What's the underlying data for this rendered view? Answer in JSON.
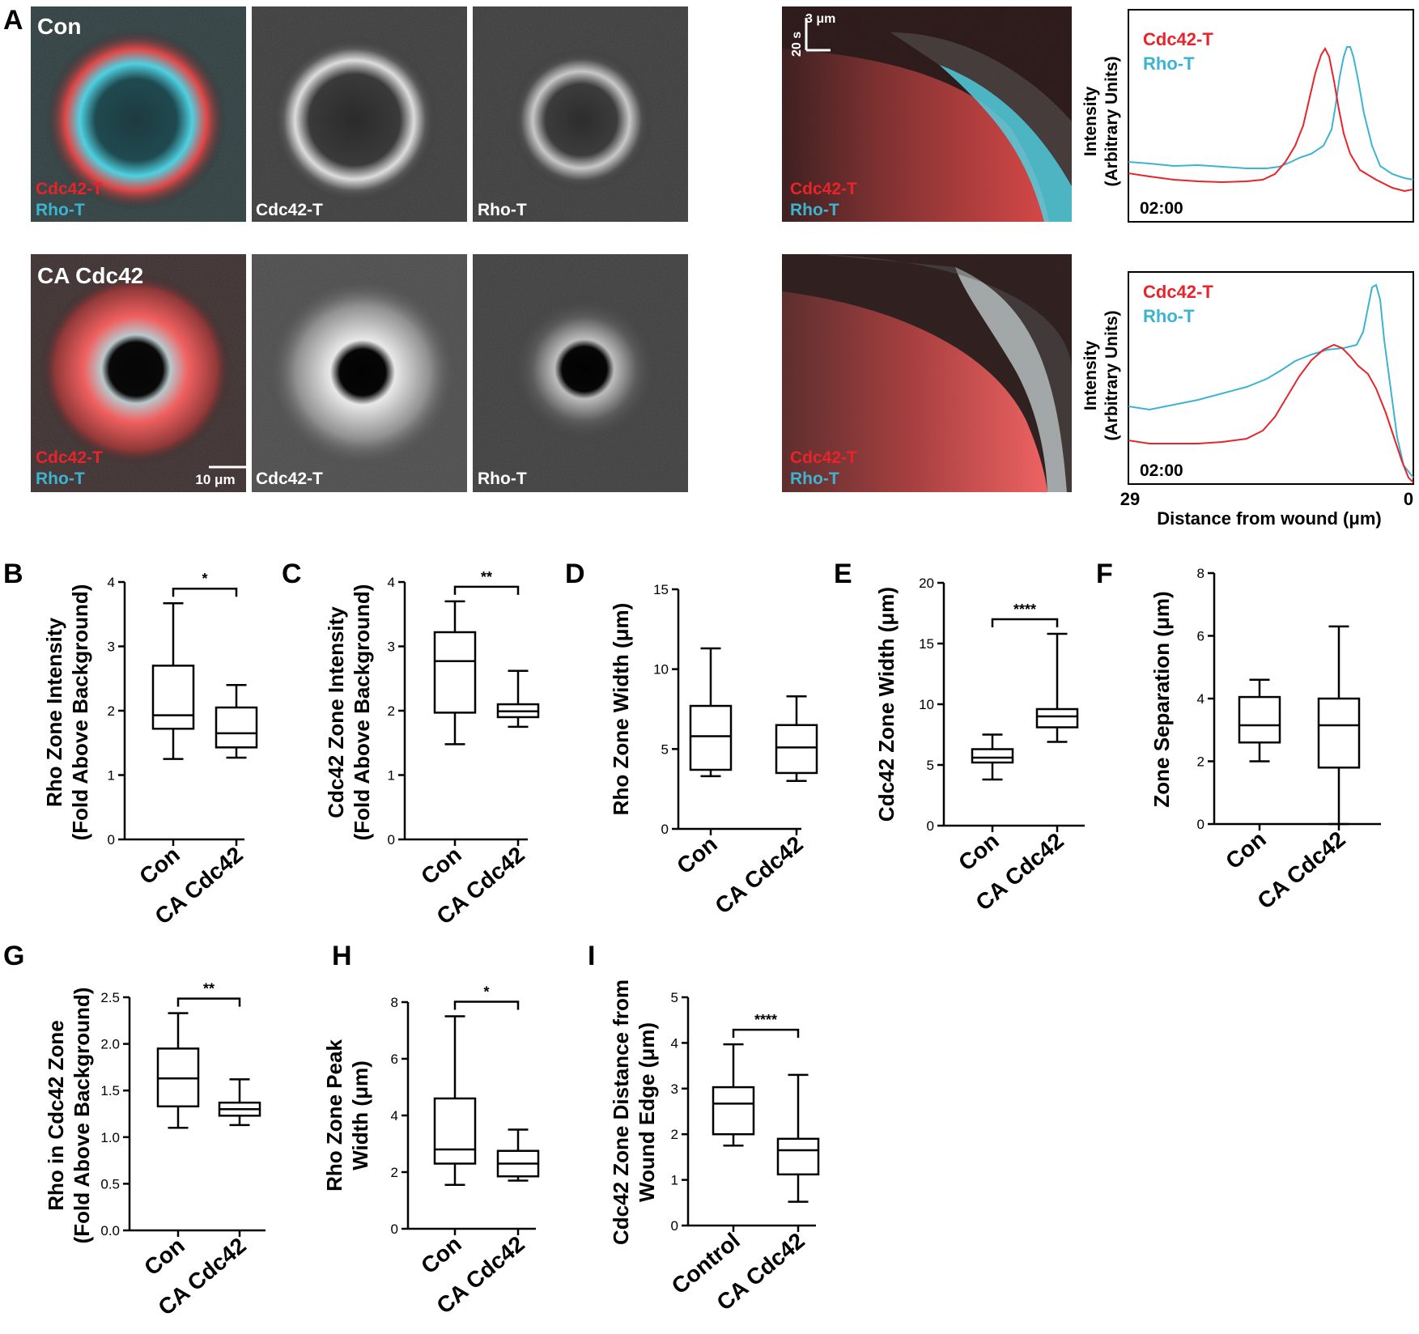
{
  "figure": {
    "panel_letters": [
      "A",
      "B",
      "C",
      "D",
      "E",
      "F",
      "G",
      "H",
      "I"
    ],
    "colors": {
      "red": "#e8242a",
      "cyan": "#3cb4d0",
      "black": "#000000"
    }
  },
  "panelA": {
    "row_labels": [
      "Con",
      "CA Cdc42"
    ],
    "merge_label_red": "Cdc42-T",
    "merge_label_cyan": "Rho-T",
    "gray_label_1": "Cdc42-T",
    "gray_label_2": "Rho-T",
    "scalebar": "10 μm",
    "kymo_scale_x": "3 μm",
    "kymo_scale_y": "20 s",
    "profile": {
      "ylabel_1": "Intensity",
      "ylabel_2": "(Arbitrary Units)",
      "legend_red": "Cdc42-T",
      "legend_cyan": "Rho-T",
      "time": "02:00",
      "x_left": "29",
      "x_right": "0",
      "xlabel": "Distance from wound (μm)"
    }
  },
  "chart_data": [
    {
      "panel": "B",
      "type": "box",
      "ylabel": [
        "Rho Zone Intensity",
        "(Fold Above Background)"
      ],
      "categories": [
        "Con",
        "CA Cdc42"
      ],
      "ylim": [
        0,
        4
      ],
      "yticks": [
        "0",
        "1",
        "2",
        "3",
        "4"
      ],
      "boxes": [
        {
          "min": 1.25,
          "q1": 1.72,
          "median": 1.93,
          "q3": 2.7,
          "max": 3.67
        },
        {
          "min": 1.27,
          "q1": 1.43,
          "median": 1.65,
          "q3": 2.05,
          "max": 2.4
        }
      ],
      "significance": "*"
    },
    {
      "panel": "C",
      "type": "box",
      "ylabel": [
        "Cdc42 Zone Intensity",
        "(Fold Above Background)"
      ],
      "categories": [
        "Con",
        "CA Cdc42"
      ],
      "ylim": [
        0,
        4
      ],
      "yticks": [
        "0",
        "1",
        "2",
        "3",
        "4"
      ],
      "boxes": [
        {
          "min": 1.48,
          "q1": 1.97,
          "median": 2.77,
          "q3": 3.22,
          "max": 3.7
        },
        {
          "min": 1.75,
          "q1": 1.9,
          "median": 1.99,
          "q3": 2.1,
          "max": 2.62
        }
      ],
      "significance": "**"
    },
    {
      "panel": "D",
      "type": "box",
      "ylabel": [
        "Rho Zone Width (μm)"
      ],
      "categories": [
        "Con",
        "CA Cdc42"
      ],
      "ylim": [
        0,
        15
      ],
      "yticks": [
        "0",
        "5",
        "10",
        "15"
      ],
      "boxes": [
        {
          "min": 3.3,
          "q1": 3.7,
          "median": 5.8,
          "q3": 7.7,
          "max": 11.3
        },
        {
          "min": 3.0,
          "q1": 3.5,
          "median": 5.1,
          "q3": 6.5,
          "max": 8.3
        }
      ],
      "significance": ""
    },
    {
      "panel": "E",
      "type": "box",
      "ylabel": [
        "Cdc42 Zone Width (μm)"
      ],
      "categories": [
        "Con",
        "CA Cdc42"
      ],
      "ylim": [
        0,
        20
      ],
      "yticks": [
        "0",
        "5",
        "10",
        "15",
        "20"
      ],
      "boxes": [
        {
          "min": 3.8,
          "q1": 5.2,
          "median": 5.6,
          "q3": 6.3,
          "max": 7.5
        },
        {
          "min": 6.9,
          "q1": 8.1,
          "median": 9.0,
          "q3": 9.6,
          "max": 15.8
        }
      ],
      "significance": "****"
    },
    {
      "panel": "F",
      "type": "box",
      "ylabel": [
        "Zone Separation (μm)"
      ],
      "categories": [
        "Con",
        "CA Cdc42"
      ],
      "ylim": [
        0,
        8
      ],
      "yticks": [
        "0",
        "2",
        "4",
        "6",
        "8"
      ],
      "boxes": [
        {
          "min": 2.0,
          "q1": 2.6,
          "median": 3.15,
          "q3": 4.05,
          "max": 4.6
        },
        {
          "min": 0.0,
          "q1": 1.8,
          "median": 3.15,
          "q3": 4.0,
          "max": 6.3
        }
      ],
      "significance": ""
    },
    {
      "panel": "G",
      "type": "box",
      "ylabel": [
        "Rho in Cdc42 Zone",
        "(Fold Above Background)"
      ],
      "categories": [
        "Con",
        "CA Cdc42"
      ],
      "ylim": [
        0,
        2.5
      ],
      "yticks": [
        "0.0",
        "0.5",
        "1.0",
        "1.5",
        "2.0",
        "2.5"
      ],
      "boxes": [
        {
          "min": 1.1,
          "q1": 1.33,
          "median": 1.63,
          "q3": 1.95,
          "max": 2.33
        },
        {
          "min": 1.13,
          "q1": 1.23,
          "median": 1.3,
          "q3": 1.37,
          "max": 1.62
        }
      ],
      "significance": "**"
    },
    {
      "panel": "H",
      "type": "box",
      "ylabel": [
        "Rho Zone Peak",
        "Width (μm)"
      ],
      "categories": [
        "Con",
        "CA Cdc42"
      ],
      "ylim": [
        0,
        8
      ],
      "yticks": [
        "0",
        "2",
        "4",
        "6",
        "8"
      ],
      "boxes": [
        {
          "min": 1.55,
          "q1": 2.3,
          "median": 2.8,
          "q3": 4.6,
          "max": 7.5
        },
        {
          "min": 1.7,
          "q1": 1.85,
          "median": 2.3,
          "q3": 2.75,
          "max": 3.5
        }
      ],
      "significance": "*"
    },
    {
      "panel": "I",
      "type": "box",
      "ylabel": [
        "Cdc42 Zone Distance from",
        "Wound Edge (μm)"
      ],
      "categories": [
        "Control",
        "CA Cdc42"
      ],
      "ylim": [
        0,
        5
      ],
      "yticks": [
        "0",
        "1",
        "2",
        "3",
        "4",
        "5"
      ],
      "boxes": [
        {
          "min": 1.75,
          "q1": 2.0,
          "median": 2.67,
          "q3": 3.03,
          "max": 3.97
        },
        {
          "min": 0.52,
          "q1": 1.12,
          "median": 1.65,
          "q3": 1.9,
          "max": 3.3
        }
      ],
      "significance": "****"
    }
  ]
}
